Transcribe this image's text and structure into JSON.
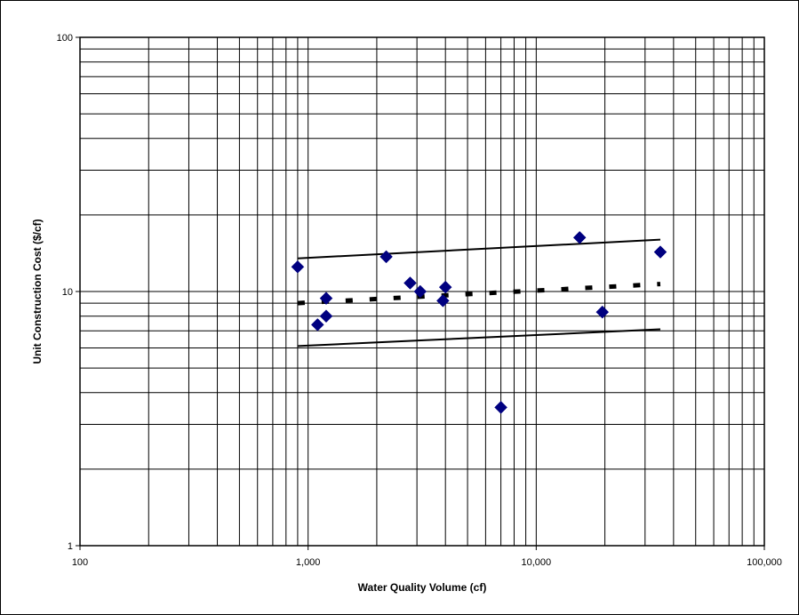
{
  "chart_data": {
    "type": "scatter",
    "title": "",
    "xlabel": "Water Quality Volume (cf)",
    "ylabel": "Unit Construction Cost ($/cf)",
    "x_scale": "log",
    "y_scale": "log",
    "xlim": [
      100,
      100000
    ],
    "ylim": [
      1,
      100
    ],
    "grid": true,
    "legend": "none",
    "x_ticks": [
      {
        "value": 100,
        "label": "100"
      },
      {
        "value": 1000,
        "label": "1,000"
      },
      {
        "value": 10000,
        "label": "10,000"
      },
      {
        "value": 100000,
        "label": "100,000"
      }
    ],
    "y_ticks": [
      {
        "value": 1,
        "label": "1"
      },
      {
        "value": 10,
        "label": "10"
      },
      {
        "value": 100,
        "label": "100"
      }
    ],
    "colors": {
      "points": "#000080",
      "lines": "#000000",
      "grid": "#000000"
    },
    "series": [
      {
        "kind": "points",
        "marker": "diamond",
        "x": [
          900,
          1100,
          1200,
          1200,
          2200,
          2800,
          3100,
          3900,
          4000,
          7000,
          15500,
          19500,
          35000
        ],
        "y": [
          12.5,
          7.4,
          9.4,
          8.0,
          13.7,
          10.8,
          10.0,
          9.2,
          10.4,
          3.5,
          16.3,
          8.3,
          14.3
        ]
      },
      {
        "kind": "line",
        "style": "solid",
        "x": [
          900,
          35000
        ],
        "y": [
          13.5,
          16.0
        ]
      },
      {
        "kind": "line",
        "style": "dashed",
        "x": [
          900,
          35000
        ],
        "y": [
          9.0,
          10.7
        ]
      },
      {
        "kind": "line",
        "style": "solid",
        "x": [
          900,
          35000
        ],
        "y": [
          6.1,
          7.1
        ]
      }
    ]
  }
}
